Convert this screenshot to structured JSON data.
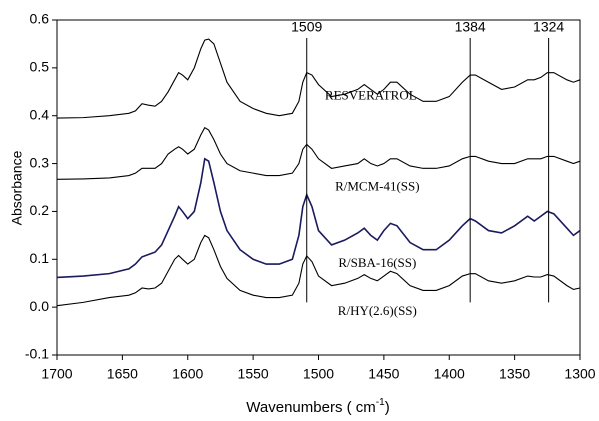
{
  "chart_data": {
    "type": "line",
    "ylabel": "Absorbance",
    "xlabel_parts": [
      "Wavenumbers ( cm",
      "-1",
      ")"
    ],
    "xlim": [
      1700,
      1300
    ],
    "ylim": [
      -0.1,
      0.6
    ],
    "xticks": [
      1700,
      1650,
      1600,
      1550,
      1500,
      1450,
      1400,
      1350,
      1300
    ],
    "yticks": [
      -0.1,
      {
        "value": 0,
        "label": "0.0"
      },
      0.1,
      0.2,
      0.3,
      0.4,
      0.5,
      0.6
    ],
    "x": [
      1700,
      1680,
      1660,
      1645,
      1640,
      1635,
      1630,
      1625,
      1620,
      1615,
      1610,
      1607,
      1604,
      1600,
      1595,
      1590,
      1587,
      1584,
      1580,
      1575,
      1570,
      1560,
      1550,
      1540,
      1530,
      1520,
      1515,
      1512,
      1509,
      1505,
      1500,
      1490,
      1480,
      1470,
      1465,
      1460,
      1455,
      1450,
      1445,
      1440,
      1430,
      1420,
      1410,
      1400,
      1390,
      1384,
      1380,
      1370,
      1360,
      1350,
      1340,
      1335,
      1330,
      1325,
      1320,
      1310,
      1305,
      1300
    ],
    "series": [
      {
        "name": "RESVERATROL",
        "color": "#000000",
        "values": [
          0.395,
          0.396,
          0.4,
          0.405,
          0.41,
          0.425,
          0.422,
          0.42,
          0.43,
          0.45,
          0.475,
          0.49,
          0.485,
          0.475,
          0.5,
          0.54,
          0.558,
          0.56,
          0.55,
          0.51,
          0.47,
          0.43,
          0.415,
          0.405,
          0.4,
          0.405,
          0.43,
          0.47,
          0.49,
          0.485,
          0.465,
          0.44,
          0.445,
          0.455,
          0.465,
          0.455,
          0.445,
          0.455,
          0.47,
          0.47,
          0.445,
          0.43,
          0.43,
          0.44,
          0.47,
          0.485,
          0.485,
          0.47,
          0.455,
          0.46,
          0.475,
          0.475,
          0.48,
          0.49,
          0.49,
          0.475,
          0.47,
          0.475
        ]
      },
      {
        "name": "R/MCM-41(SS)",
        "color": "#000000",
        "values": [
          0.267,
          0.268,
          0.27,
          0.275,
          0.28,
          0.29,
          0.29,
          0.29,
          0.3,
          0.32,
          0.33,
          0.335,
          0.33,
          0.32,
          0.33,
          0.36,
          0.375,
          0.37,
          0.35,
          0.32,
          0.3,
          0.285,
          0.28,
          0.275,
          0.275,
          0.28,
          0.3,
          0.33,
          0.34,
          0.33,
          0.31,
          0.29,
          0.295,
          0.3,
          0.31,
          0.3,
          0.295,
          0.3,
          0.31,
          0.31,
          0.295,
          0.29,
          0.29,
          0.295,
          0.31,
          0.315,
          0.315,
          0.305,
          0.3,
          0.3,
          0.31,
          0.31,
          0.31,
          0.315,
          0.315,
          0.305,
          0.3,
          0.305
        ]
      },
      {
        "name": "R/SBA-16(SS)",
        "color": "#1a1a5e",
        "values": [
          0.062,
          0.065,
          0.07,
          0.08,
          0.09,
          0.105,
          0.11,
          0.115,
          0.13,
          0.16,
          0.19,
          0.21,
          0.2,
          0.185,
          0.2,
          0.26,
          0.31,
          0.305,
          0.26,
          0.2,
          0.16,
          0.12,
          0.1,
          0.09,
          0.09,
          0.1,
          0.15,
          0.21,
          0.235,
          0.21,
          0.16,
          0.13,
          0.14,
          0.155,
          0.165,
          0.15,
          0.14,
          0.16,
          0.175,
          0.17,
          0.135,
          0.12,
          0.12,
          0.14,
          0.17,
          0.185,
          0.18,
          0.16,
          0.155,
          0.17,
          0.19,
          0.18,
          0.19,
          0.2,
          0.195,
          0.165,
          0.15,
          0.16
        ]
      },
      {
        "name": "R/HY(2.6)(SS)",
        "color": "#000000",
        "values": [
          0.003,
          0.01,
          0.02,
          0.025,
          0.03,
          0.04,
          0.038,
          0.04,
          0.05,
          0.075,
          0.1,
          0.108,
          0.1,
          0.09,
          0.1,
          0.135,
          0.15,
          0.145,
          0.12,
          0.085,
          0.06,
          0.035,
          0.025,
          0.02,
          0.02,
          0.025,
          0.05,
          0.09,
          0.107,
          0.095,
          0.065,
          0.045,
          0.05,
          0.06,
          0.068,
          0.06,
          0.055,
          0.065,
          0.075,
          0.07,
          0.045,
          0.035,
          0.035,
          0.045,
          0.065,
          0.07,
          0.07,
          0.055,
          0.05,
          0.055,
          0.065,
          0.063,
          0.063,
          0.068,
          0.065,
          0.045,
          0.037,
          0.04
        ]
      }
    ],
    "annotations": [
      {
        "label": "1509",
        "x": 1509
      },
      {
        "label": "1384",
        "x": 1384
      },
      {
        "label": "1324",
        "x": 1324
      }
    ]
  }
}
